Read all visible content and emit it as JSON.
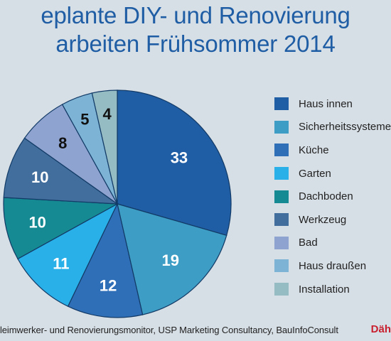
{
  "title": {
    "line1": "eplante DIY- und Renovierung",
    "line2": "arbeiten Frühsommer 2014"
  },
  "chart_data": {
    "type": "pie",
    "title": "eplante DIY- und Renovierungsarbeiten Frühsommer 2014",
    "series": [
      {
        "values": [
          33,
          19,
          12,
          11,
          10,
          10,
          8,
          5,
          4
        ]
      }
    ],
    "categories": [
      "Haus innen",
      "Sicherheitssysteme",
      "Küche",
      "Garten",
      "Dachboden",
      "Werkzeug",
      "Bad",
      "Haus draußen",
      "Installation"
    ],
    "colors": [
      "#1f5da4",
      "#3d9dc4",
      "#2f6fb8",
      "#2ab0e8",
      "#168a93",
      "#416e9c",
      "#8ea3cf",
      "#7db4d5",
      "#96bcc3"
    ],
    "legend_position": "right"
  },
  "source": "leimwerker- und Renovierungsmonitor, USP Marketing Consultancy, BauInfoConsult",
  "brand": "Däh"
}
